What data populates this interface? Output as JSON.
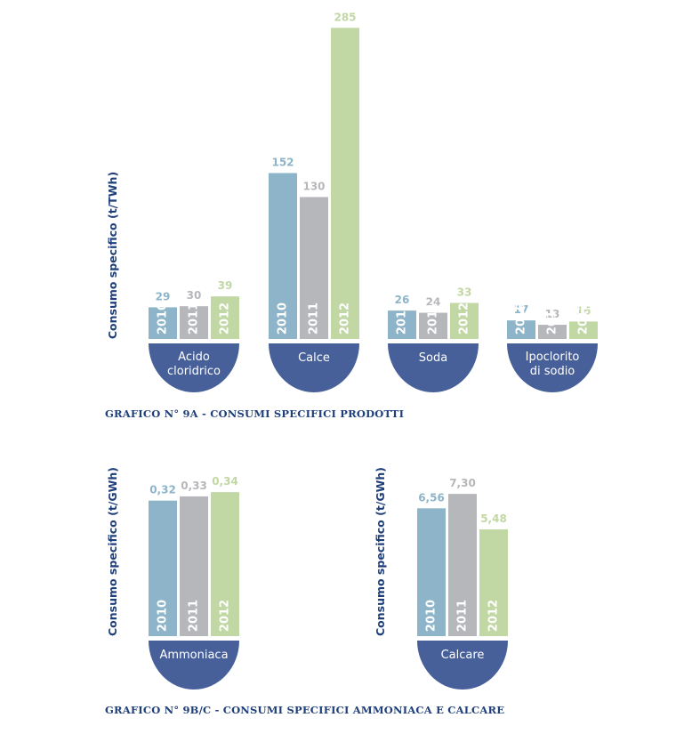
{
  "colors": {
    "y2010": "#8db4c8",
    "y2011": "#b6b7bb",
    "y2012": "#c1d8a4",
    "bowl": "#47609a",
    "text": "#1f3f7a"
  },
  "chart_data": [
    {
      "type": "bar",
      "ylabel": "Consumo specifico (t/TWh)",
      "caption": "GRAFICO N° 9A - CONSUMI SPECIFICI PRODOTTI",
      "series_names": [
        "2010",
        "2011",
        "2012"
      ],
      "categories": [
        {
          "lines": [
            "Acido",
            "cloridrico"
          ],
          "values": [
            29,
            30,
            39
          ],
          "labels": [
            "29",
            "30",
            "39"
          ]
        },
        {
          "lines": [
            "Calce"
          ],
          "values": [
            152,
            130,
            285
          ],
          "labels": [
            "152",
            "130",
            "285"
          ]
        },
        {
          "lines": [
            "Soda"
          ],
          "values": [
            26,
            24,
            33
          ],
          "labels": [
            "26",
            "24",
            "33"
          ]
        },
        {
          "lines": [
            "Ipoclorito",
            "di sodio"
          ],
          "values": [
            17,
            13,
            16
          ],
          "labels": [
            "17",
            "13",
            "16"
          ]
        }
      ]
    },
    {
      "type": "bar",
      "ylabel": "Consumo specifico (t/GWh)",
      "series_names": [
        "2010",
        "2011",
        "2012"
      ],
      "categories": [
        {
          "lines": [
            "Ammoniaca"
          ],
          "values": [
            0.32,
            0.33,
            0.34
          ],
          "labels": [
            "0,32",
            "0,33",
            "0,34"
          ]
        }
      ]
    },
    {
      "type": "bar",
      "ylabel": "Consumo specifico (t/GWh)",
      "series_names": [
        "2010",
        "2011",
        "2012"
      ],
      "categories": [
        {
          "lines": [
            "Calcare"
          ],
          "values": [
            6.56,
            7.3,
            5.48
          ],
          "labels": [
            "6,56",
            "7,30",
            "5,48"
          ]
        }
      ]
    }
  ],
  "caption_9bc": "GRAFICO N° 9B/C - CONSUMI SPECIFICI AMMONIACA E CALCARE"
}
